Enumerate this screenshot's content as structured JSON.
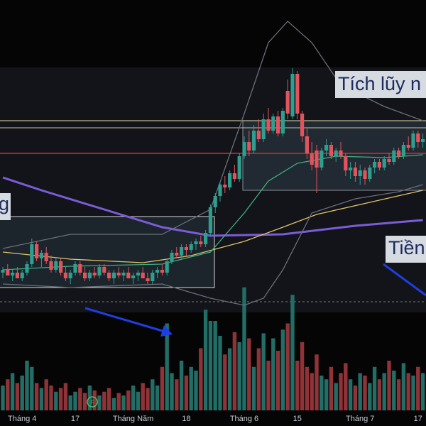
{
  "chart_data": {
    "type": "candlestick",
    "categories": [
      null,
      null,
      null,
      null,
      "Tháng 4",
      null,
      null,
      null,
      null,
      null,
      null,
      null,
      null,
      null,
      null,
      "17",
      null,
      null,
      null,
      null,
      null,
      null,
      null,
      null,
      null,
      null,
      null,
      "Tháng Năm",
      null,
      null,
      null,
      null,
      null,
      null,
      null,
      null,
      null,
      null,
      "18",
      null,
      null,
      null,
      null,
      null,
      null,
      null,
      null,
      null,
      null,
      null,
      "Tháng 6",
      null,
      null,
      null,
      null,
      null,
      null,
      null,
      null,
      null,
      null,
      "15",
      null,
      null,
      null,
      null,
      null,
      null,
      null,
      null,
      null,
      null,
      null,
      null,
      "Tháng 7",
      null,
      null,
      null,
      null,
      null,
      null,
      null,
      null,
      null,
      null,
      null,
      "17",
      null
    ],
    "open": [
      14,
      15,
      13,
      14,
      12,
      14,
      17,
      24,
      19,
      21,
      18,
      15,
      18,
      14,
      12,
      14,
      17,
      14,
      12,
      14,
      13,
      16,
      14,
      12,
      14,
      13,
      14,
      12,
      13,
      14,
      12,
      11,
      14,
      15,
      14,
      18,
      21,
      20,
      23,
      22,
      24,
      25,
      24,
      28,
      37,
      41,
      45,
      44,
      49,
      47,
      55,
      60,
      57,
      64,
      61,
      68,
      64,
      69,
      63,
      78,
      69,
      84,
      70,
      62,
      56,
      57,
      51,
      57,
      59,
      55,
      57,
      55,
      50,
      51,
      48,
      50,
      47,
      51,
      53,
      51,
      54,
      53,
      57,
      55,
      59,
      58,
      63,
      60
    ],
    "high": [
      16,
      17,
      15,
      16,
      15,
      18,
      26,
      25,
      22,
      23,
      20,
      19,
      19,
      16,
      15,
      18,
      18,
      16,
      15,
      16,
      17,
      17,
      15,
      15,
      16,
      15,
      16,
      14,
      15,
      16,
      14,
      15,
      16,
      17,
      19,
      22,
      23,
      24,
      24,
      25,
      26,
      27,
      29,
      38,
      42,
      46,
      48,
      50,
      52,
      56,
      62,
      64,
      66,
      68,
      70,
      72,
      70,
      71,
      72,
      82,
      86,
      85,
      71,
      65,
      60,
      59,
      58,
      61,
      60,
      58,
      60,
      56,
      53,
      53,
      52,
      51,
      52,
      54,
      54,
      55,
      56,
      58,
      58,
      60,
      62,
      64,
      64,
      63
    ],
    "low": [
      12,
      13,
      11,
      12,
      11,
      13,
      16,
      18,
      16,
      17,
      14,
      14,
      13,
      11,
      10,
      13,
      13,
      11,
      11,
      12,
      12,
      13,
      11,
      10,
      12,
      11,
      12,
      10,
      11,
      12,
      10,
      10,
      12,
      13,
      13,
      17,
      19,
      19,
      20,
      21,
      22,
      23,
      23,
      27,
      35,
      39,
      42,
      43,
      46,
      46,
      54,
      55,
      56,
      60,
      60,
      63,
      63,
      62,
      62,
      68,
      68,
      68,
      60,
      54,
      50,
      42,
      50,
      55,
      54,
      53,
      54,
      48,
      47,
      46,
      45,
      45,
      46,
      49,
      50,
      50,
      52,
      52,
      54,
      54,
      57,
      57,
      58,
      58
    ],
    "close": [
      15,
      13,
      14,
      12,
      14,
      17,
      24,
      19,
      21,
      18,
      15,
      18,
      14,
      12,
      14,
      17,
      14,
      12,
      14,
      13,
      16,
      14,
      12,
      14,
      13,
      14,
      12,
      13,
      14,
      12,
      11,
      14,
      15,
      14,
      18,
      21,
      20,
      23,
      22,
      24,
      25,
      24,
      28,
      37,
      41,
      45,
      44,
      49,
      47,
      55,
      60,
      57,
      64,
      61,
      68,
      64,
      69,
      63,
      71,
      70,
      84,
      70,
      62,
      56,
      52,
      51,
      57,
      59,
      55,
      57,
      55,
      50,
      51,
      48,
      50,
      47,
      51,
      53,
      51,
      54,
      53,
      57,
      55,
      59,
      58,
      63,
      60,
      61
    ],
    "ylim": [
      0,
      110
    ],
    "up_color": "#2e9e8f",
    "down_color": "#e2535c",
    "volume": {
      "values": [
        20,
        25,
        30,
        22,
        28,
        40,
        35,
        22,
        18,
        25,
        20,
        15,
        18,
        22,
        12,
        15,
        18,
        14,
        20,
        16,
        12,
        15,
        18,
        10,
        14,
        12,
        16,
        20,
        15,
        22,
        18,
        25,
        20,
        35,
        70,
        30,
        25,
        40,
        28,
        35,
        32,
        50,
        81,
        72,
        72,
        60,
        45,
        50,
        63,
        55,
        99,
        58,
        35,
        50,
        62,
        40,
        58,
        48,
        65,
        70,
        93,
        40,
        55,
        35,
        30,
        45,
        28,
        25,
        35,
        22,
        30,
        38,
        25,
        20,
        30,
        28,
        22,
        35,
        25,
        30,
        40,
        32,
        25,
        38,
        30,
        28,
        35,
        30
      ],
      "ylim": [
        0,
        100
      ],
      "up_color": "#226e66",
      "down_color": "#8f3338"
    },
    "lines": [
      {
        "color": "#7b5cd6",
        "x": [
          0,
          8,
          21,
          33,
          43,
          58,
          73,
          87
        ],
        "values": [
          47.5,
          43,
          36.25,
          30,
          27,
          27.5,
          30.5,
          32.5
        ]
      },
      {
        "color": "#e0c36a",
        "x": [
          0,
          14,
          29,
          39,
          50,
          58,
          65,
          76,
          87
        ],
        "values": [
          21.25,
          18.75,
          17.5,
          20,
          25,
          30,
          34.5,
          38.75,
          43
        ]
      },
      {
        "color": "#3fae84",
        "x": [
          0,
          14,
          33,
          43,
          50,
          55,
          61,
          69,
          79,
          87
        ],
        "values": [
          15,
          16.25,
          17,
          21.25,
          35,
          46.25,
          52.5,
          55,
          54.5,
          55.5
        ]
      },
      {
        "color": "#6b6f78",
        "x": [
          0,
          14,
          33,
          43,
          50,
          55,
          59,
          64,
          70,
          79,
          87
        ],
        "values": [
          22.5,
          27.5,
          27.5,
          36.25,
          70,
          95,
          102.5,
          95,
          80,
          72.5,
          67.5
        ]
      },
      {
        "color": "#6b6f78",
        "x": [
          0,
          14,
          33,
          43,
          50,
          54,
          58,
          64,
          73,
          82,
          87
        ],
        "values": [
          10,
          8.75,
          10,
          5,
          2.5,
          5,
          15,
          35,
          40,
          42.5,
          45
        ]
      }
    ],
    "annotations": [
      {
        "text": "Tích lũy n"
      },
      {
        "text": "Tiền"
      },
      {
        "text": "g"
      }
    ]
  }
}
